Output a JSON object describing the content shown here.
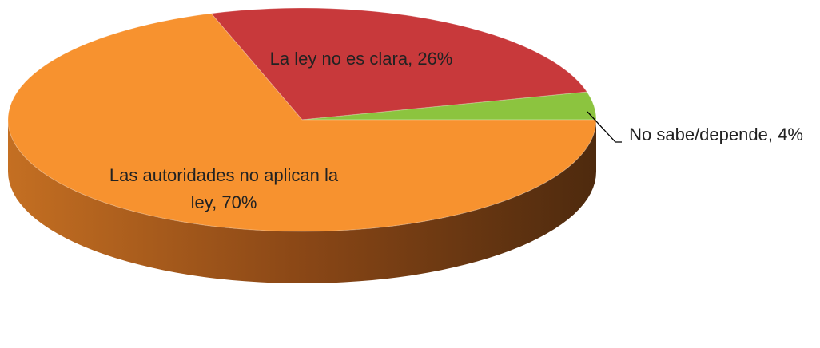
{
  "chart_data": {
    "type": "pie",
    "categories": [
      "La ley no es clara,",
      "No sabe/depende,",
      "Las autoridades no aplican la ley,"
    ],
    "values": [
      26,
      4,
      70
    ],
    "value_labels": [
      "26%",
      "4%",
      "70%"
    ],
    "colors": [
      "#c8393b",
      "#8cc43f",
      "#f7922f"
    ]
  }
}
